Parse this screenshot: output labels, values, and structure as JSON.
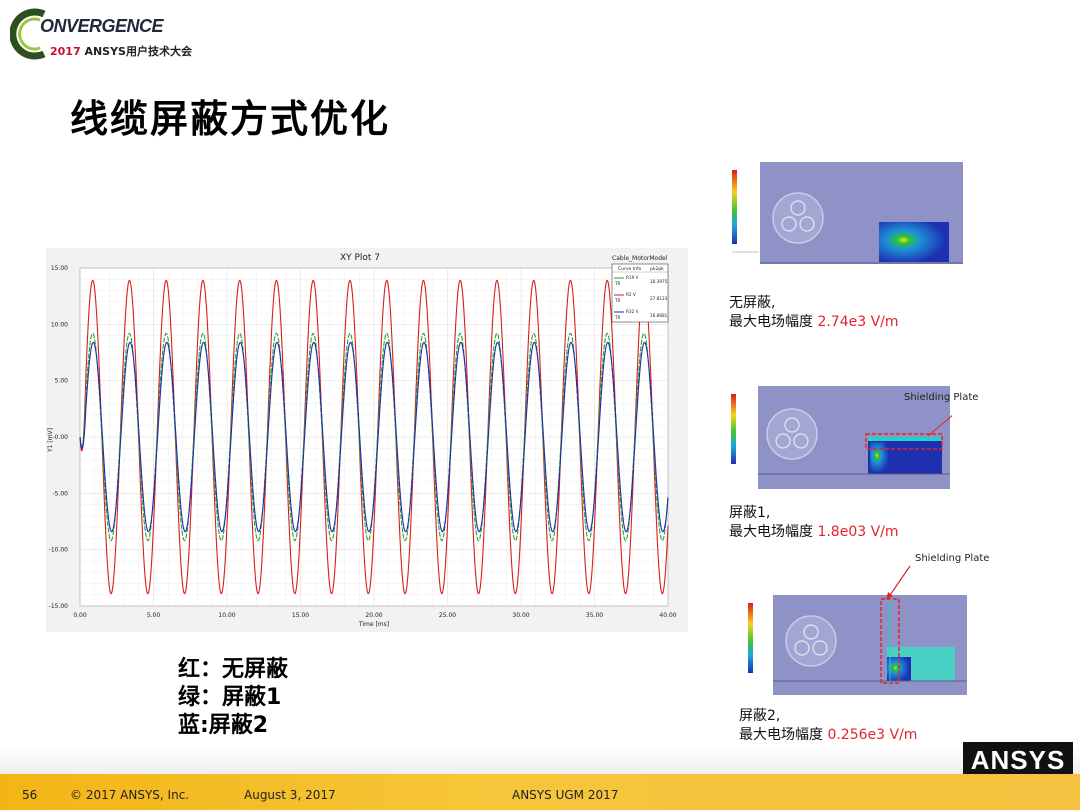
{
  "logo": {
    "line1": "ONVERGENCE",
    "year": "2017",
    "line2": " ANSYS用户技术大会"
  },
  "title": "线缆屏蔽方式优化",
  "chart_data": {
    "type": "line",
    "title": "XY Plot 7",
    "design": "Cable_MotorModel",
    "xlabel": "Time [ms]",
    "ylabel": "Y1 [mV]",
    "xlim": [
      0,
      40
    ],
    "ylim": [
      -15,
      15
    ],
    "xticks": [
      "0.00",
      "5.00",
      "10.00",
      "15.00",
      "20.00",
      "25.00",
      "30.00",
      "35.00",
      "40.00"
    ],
    "yticks": [
      "15.00",
      "10.00",
      "5.00",
      "-0.00",
      "-5.00",
      "-10.00",
      "-15.00"
    ],
    "period_ms": 2.5,
    "legend_header": [
      "Curve Info",
      "pk2pk"
    ],
    "series": [
      {
        "name": "R19 V",
        "sub": "TR",
        "pk2pk": "18.3975",
        "amplitude": 9.2,
        "color": "#2aa52a"
      },
      {
        "name": "R2 V",
        "sub": "TR",
        "pk2pk": "27.8123",
        "amplitude": 13.9,
        "color": "#d81e1e"
      },
      {
        "name": "R32 V",
        "sub": "TR",
        "pk2pk": "16.8681",
        "amplitude": 8.4,
        "color": "#1e2fb0"
      }
    ]
  },
  "notes": [
    "红：无屏蔽",
    "绿：屏蔽1",
    "蓝:屏蔽2"
  ],
  "panels": [
    {
      "caption1": "无屏蔽,",
      "caption2": "最大电场幅度 ",
      "value": "2.74e3 V/m"
    },
    {
      "caption1": "屏蔽1,",
      "caption2": "最大电场幅度 ",
      "value": "1.8e03 V/m",
      "label": "Shielding Plate"
    },
    {
      "caption1": "屏蔽2,",
      "caption2": "最大电场幅度 ",
      "value": "0.256e3 V/m",
      "label": "Shielding Plate"
    }
  ],
  "footer": {
    "page": "56",
    "copyright": "© 2017 ANSYS, Inc.",
    "date": "August 3, 2017",
    "event": "ANSYS UGM 2017"
  },
  "brand": "ANSYS"
}
